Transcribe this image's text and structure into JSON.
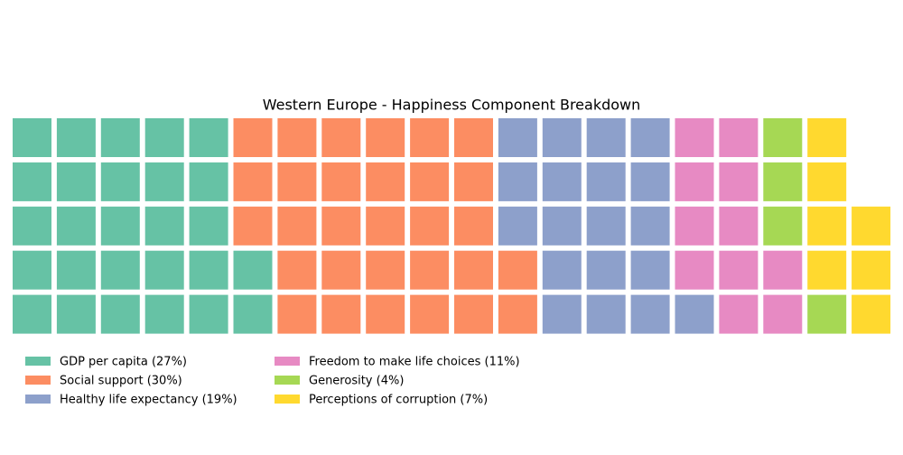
{
  "chart_data": {
    "type": "waffle",
    "title": "Western Europe - Happiness Component Breakdown",
    "series": [
      {
        "name": "GDP per capita (27%)",
        "color": "#66c2a5",
        "values": [
          27
        ]
      },
      {
        "name": "Social support (30%)",
        "color": "#fc8d62",
        "values": [
          30
        ]
      },
      {
        "name": "Healthy life expectancy (19%)",
        "color": "#8da0cb",
        "values": [
          19
        ]
      },
      {
        "name": "Freedom to make life choices (11%)",
        "color": "#e78ac3",
        "values": [
          11
        ]
      },
      {
        "name": "Generosity (4%)",
        "color": "#a6d854",
        "values": [
          4
        ]
      },
      {
        "name": "Perceptions of corruption (7%)",
        "color": "#ffd92f",
        "values": [
          7
        ]
      }
    ]
  }
}
